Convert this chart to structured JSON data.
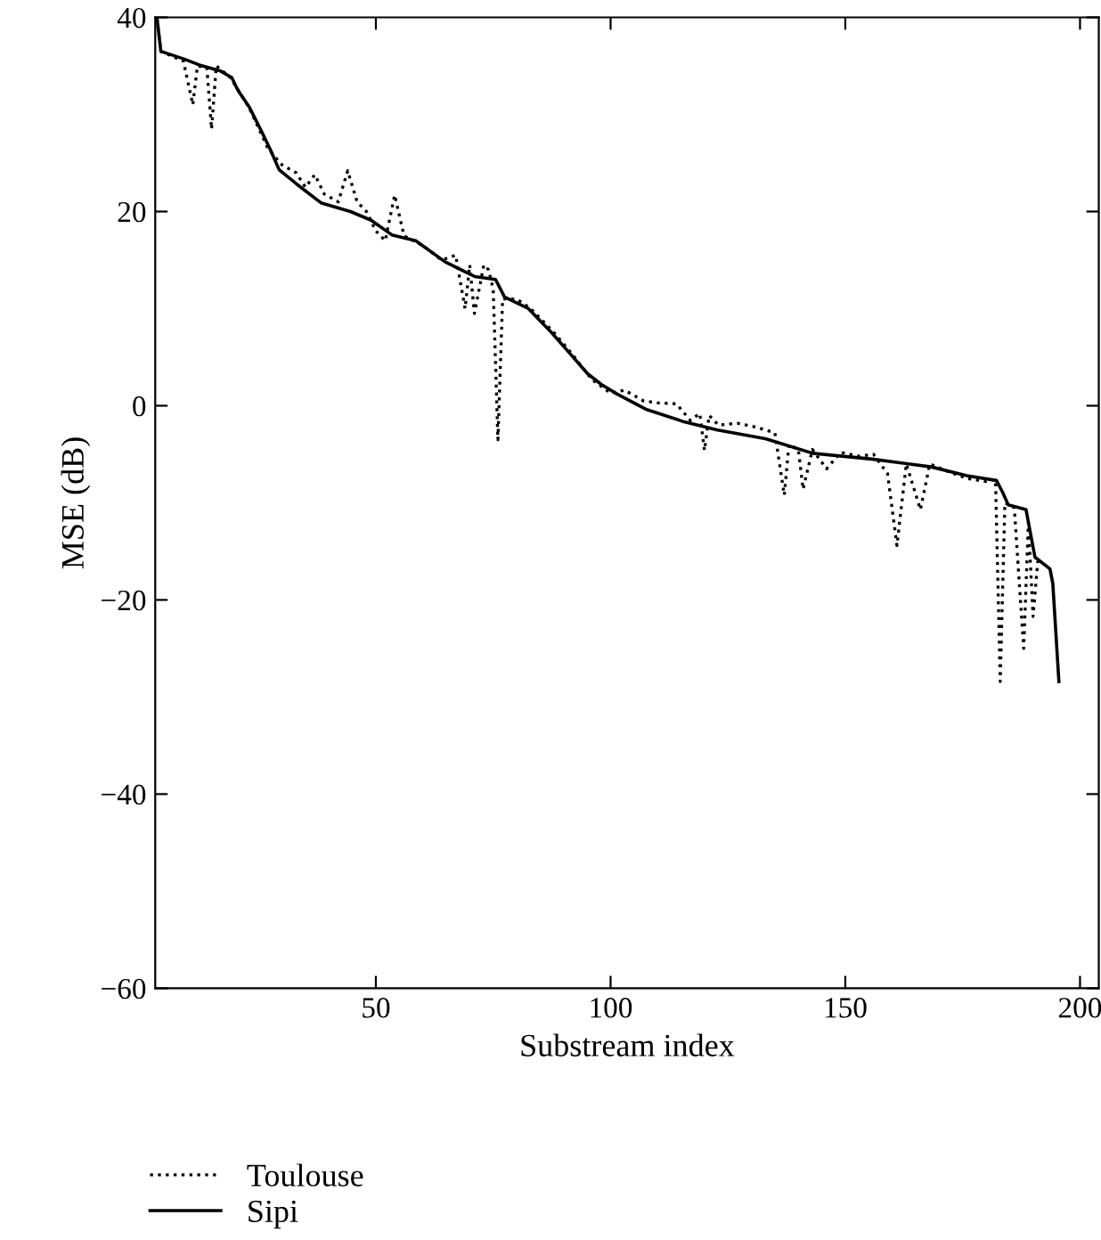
{
  "chart_data": {
    "type": "line",
    "xlabel": "Substream index",
    "ylabel": "MSE (dB)",
    "xlim": [
      3,
      204
    ],
    "ylim": [
      -60,
      40
    ],
    "xticks": [
      50,
      100,
      150,
      200
    ],
    "yticks": [
      {
        "value": -60,
        "label": "−60"
      },
      {
        "value": -40,
        "label": "−40"
      },
      {
        "value": -20,
        "label": "−20"
      },
      0,
      20,
      40
    ],
    "grid": false,
    "legend": "bottom left",
    "marker": "none",
    "series": [
      {
        "name": "Toulouse",
        "color": "#000000",
        "line_style": "dotted",
        "x": [
          3.4,
          4.2,
          9,
          11,
          12,
          14,
          15,
          16,
          19,
          23,
          27,
          30,
          33,
          35,
          37,
          39,
          42,
          44,
          46,
          48,
          50,
          52,
          54,
          56,
          60,
          64,
          67,
          69,
          70,
          71,
          73,
          74,
          75,
          76,
          77,
          80,
          83,
          88,
          92,
          96,
          100,
          103,
          107,
          110,
          114,
          117,
          119,
          120,
          121,
          123,
          127,
          131,
          135,
          137,
          138,
          140,
          141,
          143,
          146,
          149,
          153,
          156,
          159,
          161,
          163,
          166,
          168,
          172,
          176,
          180,
          182,
          183,
          184,
          186,
          188,
          189,
          190,
          191
        ],
        "values": [
          39.8,
          36.5,
          35.5,
          31,
          35,
          34.8,
          28.5,
          35,
          33.8,
          30.7,
          26.5,
          24.8,
          24,
          22.5,
          23.8,
          21.8,
          21,
          24.2,
          21,
          20,
          18,
          17,
          21.7,
          17.5,
          16.5,
          15,
          15.5,
          10,
          14.5,
          9.5,
          14.5,
          14,
          12,
          -3.5,
          11,
          11,
          10,
          7.5,
          5.2,
          2.7,
          1.3,
          1.6,
          0.5,
          0.3,
          0.2,
          -1.5,
          -0.8,
          -4.6,
          -1,
          -2,
          -1.8,
          -2.2,
          -2.8,
          -9.2,
          -4,
          -4.5,
          -8.6,
          -4.5,
          -6.5,
          -4.8,
          -5.2,
          -5,
          -7,
          -14.4,
          -6,
          -10.7,
          -6,
          -6.8,
          -7.5,
          -7.8,
          -7.6,
          -28.4,
          -10,
          -10.5,
          -25,
          -12,
          -21.7,
          -16
        ]
      },
      {
        "name": "Sipi",
        "color": "#000000",
        "line_style": "solid",
        "x": [
          3.4,
          4.2,
          9.2,
          12.4,
          16.8,
          19.3,
          20.6,
          23.1,
          25.6,
          27.5,
          29.4,
          33.2,
          38.3,
          44.6,
          49,
          53.4,
          58.5,
          64.8,
          71.1,
          75.5,
          77.4,
          82.5,
          87.5,
          91.3,
          95.1,
          98,
          101.4,
          107.7,
          115.3,
          122.8,
          133,
          143.1,
          155.7,
          168.3,
          175.9,
          182.2,
          183.5,
          184.7,
          188.5,
          190.4,
          193.6,
          194.2,
          195.5
        ],
        "values": [
          39.8,
          36.5,
          35.7,
          35.1,
          34.5,
          33.8,
          32.5,
          30.7,
          28.3,
          26.4,
          24.3,
          22.8,
          20.9,
          20,
          19.1,
          17.6,
          17,
          14.8,
          13.3,
          13,
          11.2,
          10,
          7.5,
          5.4,
          3.3,
          2.2,
          1.2,
          -0.4,
          -1.6,
          -2.5,
          -3.4,
          -4.9,
          -5.5,
          -6.3,
          -7.2,
          -7.7,
          -8.9,
          -10.2,
          -10.7,
          -15.6,
          -16.8,
          -18.3,
          -28.4
        ]
      }
    ]
  }
}
